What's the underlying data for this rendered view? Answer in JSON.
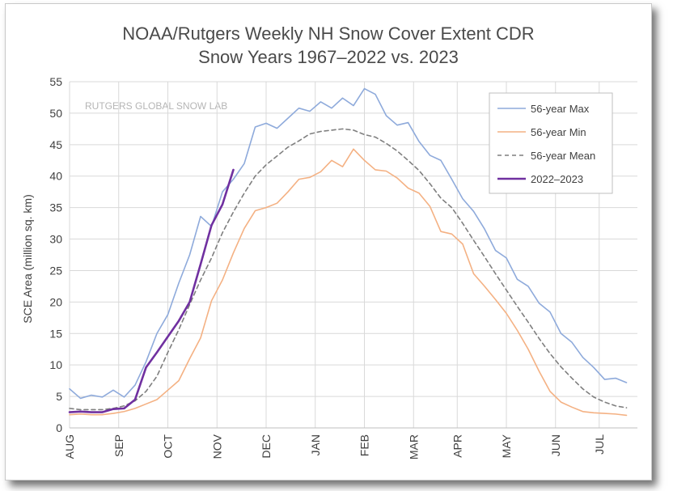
{
  "chart_data": {
    "type": "line",
    "title_line1": "NOAA/Rutgers Weekly NH Snow Cover Extent CDR",
    "title_line2": "Snow Years 1967–2022 vs. 2023",
    "ylabel": "SCE Area (million sq. km)",
    "watermark": "RUTGERS GLOBAL SNOW LAB",
    "ylim": [
      0,
      55
    ],
    "yticks": [
      0,
      5,
      10,
      15,
      20,
      25,
      30,
      35,
      40,
      45,
      50,
      55
    ],
    "week_range": [
      0,
      52
    ],
    "xticks": [
      {
        "label": "AUG",
        "week": 0
      },
      {
        "label": "SEP",
        "week": 4.5
      },
      {
        "label": "OCT",
        "week": 9
      },
      {
        "label": "NOV",
        "week": 13.5
      },
      {
        "label": "DEC",
        "week": 18
      },
      {
        "label": "JAN",
        "week": 22.5
      },
      {
        "label": "FEB",
        "week": 27
      },
      {
        "label": "MAR",
        "week": 31.5
      },
      {
        "label": "APR",
        "week": 35.5
      },
      {
        "label": "MAY",
        "week": 40
      },
      {
        "label": "JUN",
        "week": 44.5
      },
      {
        "label": "JUL",
        "week": 48.5
      }
    ],
    "legend_position": "top-right",
    "series": [
      {
        "name": "56-year Max",
        "color": "#8eaadb",
        "dash": "",
        "values": [
          6.2,
          4.7,
          5.2,
          4.9,
          6.0,
          4.9,
          6.8,
          10.5,
          15.0,
          18.0,
          23.0,
          27.5,
          33.6,
          32.0,
          37.5,
          39.5,
          42.0,
          47.8,
          48.4,
          47.6,
          49.2,
          50.8,
          50.3,
          51.8,
          50.8,
          52.4,
          51.2,
          53.9,
          53.0,
          49.6,
          48.1,
          48.5,
          45.5,
          43.3,
          42.5,
          39.5,
          36.4,
          34.4,
          31.6,
          28.2,
          27.0,
          23.6,
          22.5,
          19.8,
          18.4,
          15.0,
          13.6,
          11.2,
          9.6,
          7.7,
          7.9,
          7.2
        ]
      },
      {
        "name": "56-year Min",
        "color": "#f4b183",
        "dash": "",
        "values": [
          2.1,
          2.2,
          2.1,
          2.1,
          2.3,
          2.6,
          3.1,
          3.8,
          4.5,
          6.0,
          7.5,
          11.0,
          14.3,
          20.2,
          23.5,
          27.8,
          31.7,
          34.5,
          35.0,
          35.7,
          37.5,
          39.5,
          39.8,
          40.7,
          42.5,
          41.5,
          44.3,
          42.5,
          41.0,
          40.8,
          39.7,
          38.1,
          37.3,
          35.2,
          31.2,
          30.8,
          29.2,
          24.5,
          22.5,
          20.4,
          18.2,
          15.5,
          12.5,
          9.0,
          5.8,
          4.1,
          3.3,
          2.6,
          2.4,
          2.3,
          2.2,
          2.0
        ]
      },
      {
        "name": "56-year Mean",
        "color": "#7f7f7f",
        "dash": "5,4",
        "values": [
          3.1,
          2.9,
          2.9,
          2.9,
          3.1,
          3.5,
          4.3,
          5.8,
          8.2,
          12.0,
          15.6,
          19.6,
          23.5,
          27.0,
          31.0,
          34.3,
          37.3,
          40.0,
          41.8,
          43.2,
          44.6,
          45.6,
          46.7,
          47.1,
          47.3,
          47.5,
          47.3,
          46.6,
          46.2,
          45.2,
          44.0,
          42.5,
          40.9,
          38.8,
          36.5,
          35.0,
          32.5,
          29.8,
          27.2,
          24.5,
          21.9,
          19.3,
          16.8,
          14.2,
          11.8,
          9.7,
          7.9,
          6.2,
          4.9,
          4.1,
          3.5,
          3.2
        ]
      },
      {
        "name": "2022–2023",
        "color": "#7030a0",
        "dash": "",
        "width": 2.6,
        "values": [
          2.5,
          2.6,
          2.5,
          2.5,
          3.0,
          3.1,
          4.5,
          9.6,
          12.0,
          14.5,
          17.0,
          20.0,
          26.0,
          32.2,
          35.5,
          41.0
        ]
      }
    ]
  }
}
